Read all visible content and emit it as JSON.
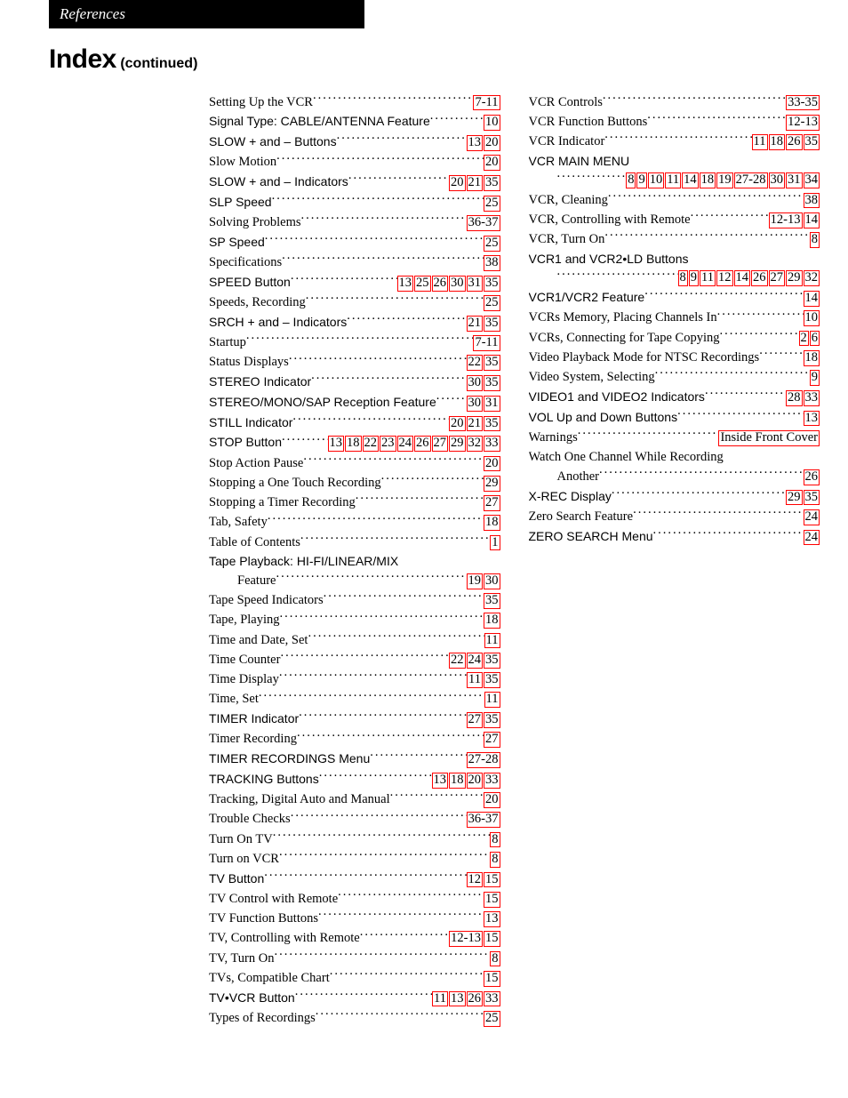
{
  "header_tab": "References",
  "title_main": "Index",
  "title_sub": "(continued)",
  "link_border_color": "#ff0000",
  "text_color": "#000000",
  "background_color": "#ffffff",
  "col1": [
    {
      "label": "Setting Up the VCR",
      "pages": [
        {
          "t": "7-11",
          "box": true
        }
      ]
    },
    {
      "label": "Signal Type: CABLE/ANTENNA Feature",
      "sans": true,
      "pages": [
        {
          "t": "10",
          "box": true
        }
      ]
    },
    {
      "label": "SLOW + and – Buttons",
      "sans": true,
      "pages": [
        {
          "t": "13",
          "box": true
        },
        {
          "t": "20",
          "box": true
        }
      ]
    },
    {
      "label": "Slow Motion",
      "pages": [
        {
          "t": "20",
          "box": true
        }
      ]
    },
    {
      "label": "SLOW + and – Indicators",
      "sans": true,
      "pages": [
        {
          "t": "20",
          "box": true
        },
        {
          "t": "21",
          "box": true
        },
        {
          "t": "35",
          "box": true
        }
      ]
    },
    {
      "label": "SLP Speed",
      "sans": true,
      "pages": [
        {
          "t": "25",
          "box": true
        }
      ]
    },
    {
      "label": "Solving Problems",
      "pages": [
        {
          "t": "36-37",
          "box": true
        }
      ]
    },
    {
      "label": "SP Speed",
      "sans": true,
      "pages": [
        {
          "t": "25",
          "box": true
        }
      ]
    },
    {
      "label": "Specifications",
      "pages": [
        {
          "t": "38",
          "box": true
        }
      ]
    },
    {
      "label": "SPEED Button",
      "sans": true,
      "pages": [
        {
          "t": "13",
          "box": true
        },
        {
          "t": "25",
          "box": true
        },
        {
          "t": "26",
          "box": true
        },
        {
          "t": "30",
          "box": true
        },
        {
          "t": "31",
          "box": true
        },
        {
          "t": "35",
          "box": true
        }
      ]
    },
    {
      "label": "Speeds, Recording",
      "pages": [
        {
          "t": "25",
          "box": true
        }
      ]
    },
    {
      "label": "SRCH + and – Indicators",
      "sans": true,
      "pages": [
        {
          "t": "21",
          "box": true
        },
        {
          "t": "35",
          "box": true
        }
      ]
    },
    {
      "label": "Startup",
      "pages": [
        {
          "t": "7-11",
          "box": true
        }
      ]
    },
    {
      "label": "Status Displays",
      "pages": [
        {
          "t": "22",
          "box": true
        },
        {
          "t": "35",
          "box": true
        }
      ]
    },
    {
      "label": "STEREO Indicator",
      "sans": true,
      "pages": [
        {
          "t": "30",
          "box": true
        },
        {
          "t": "35",
          "box": true
        }
      ]
    },
    {
      "label": "STEREO/MONO/SAP Reception Feature",
      "sans": true,
      "pages": [
        {
          "t": "30",
          "box": true
        },
        {
          "t": "31",
          "box": true
        }
      ]
    },
    {
      "label": "STILL Indicator",
      "sans": true,
      "pages": [
        {
          "t": "20",
          "box": true
        },
        {
          "t": "21",
          "box": true
        },
        {
          "t": "35",
          "box": true
        }
      ]
    },
    {
      "label": "STOP Button",
      "sans": true,
      "pages": [
        {
          "t": "13",
          "box": true
        },
        {
          "t": "18",
          "box": true
        },
        {
          "t": "22",
          "box": true
        },
        {
          "t": "23",
          "box": true
        },
        {
          "t": "24",
          "box": true
        },
        {
          "t": "26",
          "box": true
        },
        {
          "t": "27",
          "box": true
        },
        {
          "t": "29",
          "box": true
        },
        {
          "t": "32",
          "box": true
        },
        {
          "t": "33",
          "box": true
        }
      ]
    },
    {
      "label": "Stop Action Pause",
      "pages": [
        {
          "t": "20",
          "box": true
        }
      ]
    },
    {
      "label": "Stopping a One Touch Recording",
      "pages": [
        {
          "t": "29",
          "box": true
        }
      ]
    },
    {
      "label": "Stopping a Timer Recording",
      "pages": [
        {
          "t": "27",
          "box": true
        }
      ]
    },
    {
      "label": "Tab, Safety",
      "pages": [
        {
          "t": "18",
          "box": true
        }
      ]
    },
    {
      "label": "Table of Contents",
      "pages": [
        {
          "t": "1",
          "box": true
        }
      ]
    },
    {
      "label": "Tape Playback: HI-FI/LINEAR/MIX",
      "sans": true,
      "noleader": true,
      "pages": []
    },
    {
      "label": "Feature",
      "indent": true,
      "pages": [
        {
          "t": "19",
          "box": true
        },
        {
          "t": "30",
          "box": true
        }
      ]
    },
    {
      "label": "Tape Speed Indicators",
      "pages": [
        {
          "t": "35",
          "box": true
        }
      ]
    },
    {
      "label": "Tape, Playing",
      "pages": [
        {
          "t": "18",
          "box": true
        }
      ]
    },
    {
      "label": "Time and Date, Set",
      "pages": [
        {
          "t": "11",
          "box": true
        }
      ]
    },
    {
      "label": "Time Counter",
      "pages": [
        {
          "t": "22",
          "box": true
        },
        {
          "t": "24",
          "box": true
        },
        {
          "t": "35",
          "box": true
        }
      ]
    },
    {
      "label": "Time Display",
      "pages": [
        {
          "t": "11",
          "box": true
        },
        {
          "t": "35",
          "box": true
        }
      ]
    },
    {
      "label": "Time, Set",
      "pages": [
        {
          "t": "11",
          "box": true
        }
      ]
    },
    {
      "label": "TIMER Indicator",
      "sans": true,
      "pages": [
        {
          "t": "27",
          "box": true
        },
        {
          "t": "35",
          "box": true
        }
      ]
    },
    {
      "label": "Timer Recording",
      "pages": [
        {
          "t": "27",
          "box": true
        }
      ]
    },
    {
      "label": "TIMER RECORDINGS Menu",
      "sans": true,
      "pages": [
        {
          "t": "27-28",
          "box": true
        }
      ]
    },
    {
      "label": "TRACKING Buttons",
      "sans": true,
      "pages": [
        {
          "t": "13",
          "box": true
        },
        {
          "t": "18",
          "box": true
        },
        {
          "t": "20",
          "box": true
        },
        {
          "t": "33",
          "box": true
        }
      ]
    },
    {
      "label": "Tracking, Digital Auto and Manual",
      "pages": [
        {
          "t": "20",
          "box": true
        }
      ]
    },
    {
      "label": "Trouble Checks",
      "pages": [
        {
          "t": "36-37",
          "box": true
        }
      ]
    },
    {
      "label": "Turn On TV",
      "pages": [
        {
          "t": "8",
          "box": true
        }
      ]
    },
    {
      "label": "Turn on VCR",
      "pages": [
        {
          "t": "8",
          "box": true
        }
      ]
    },
    {
      "label": "TV Button",
      "sans": true,
      "pages": [
        {
          "t": "12",
          "box": true
        },
        {
          "t": "15",
          "box": true
        }
      ]
    },
    {
      "label": "TV Control with Remote",
      "pages": [
        {
          "t": "15",
          "box": true
        }
      ]
    },
    {
      "label": "TV Function Buttons",
      "pages": [
        {
          "t": "13",
          "box": true
        }
      ]
    },
    {
      "label": "TV, Controlling with Remote",
      "pages": [
        {
          "t": "12-13",
          "box": true
        },
        {
          "t": "15",
          "box": true
        }
      ]
    },
    {
      "label": "TV, Turn On",
      "pages": [
        {
          "t": "8",
          "box": true
        }
      ]
    },
    {
      "label": "TVs, Compatible Chart",
      "pages": [
        {
          "t": "15",
          "box": true
        }
      ]
    },
    {
      "label": "TV•VCR Button",
      "sans": true,
      "pages": [
        {
          "t": "11",
          "box": true
        },
        {
          "t": "13",
          "box": true
        },
        {
          "t": "26",
          "box": true
        },
        {
          "t": "33",
          "box": true
        }
      ]
    },
    {
      "label": "Types of Recordings",
      "pages": [
        {
          "t": "25",
          "box": true
        }
      ]
    }
  ],
  "col2": [
    {
      "label": "VCR Controls",
      "pages": [
        {
          "t": "33-35",
          "box": true
        }
      ]
    },
    {
      "label": "VCR Function Buttons",
      "pages": [
        {
          "t": "12-13",
          "box": true
        }
      ]
    },
    {
      "label": "VCR Indicator",
      "pages": [
        {
          "t": "11",
          "box": true
        },
        {
          "t": "18",
          "box": true
        },
        {
          "t": "26",
          "box": true
        },
        {
          "t": "35",
          "box": true
        }
      ]
    },
    {
      "label": "VCR MAIN MENU",
      "sans": true,
      "noleader": true,
      "pages": []
    },
    {
      "label": "",
      "indent": true,
      "pages": [
        {
          "t": "8",
          "box": true
        },
        {
          "t": "9",
          "box": true
        },
        {
          "t": "10",
          "box": true
        },
        {
          "t": "11",
          "box": true
        },
        {
          "t": "14",
          "box": true
        },
        {
          "t": "18",
          "box": true
        },
        {
          "t": "19",
          "box": true
        },
        {
          "t": "27-28",
          "box": true
        },
        {
          "t": "30",
          "box": true
        },
        {
          "t": "31",
          "box": true
        },
        {
          "t": "34",
          "box": true
        }
      ]
    },
    {
      "label": "VCR, Cleaning",
      "pages": [
        {
          "t": "38",
          "box": true
        }
      ]
    },
    {
      "label": "VCR, Controlling with Remote",
      "pages": [
        {
          "t": "12-13",
          "box": true
        },
        {
          "t": "14",
          "box": true
        }
      ]
    },
    {
      "label": "VCR, Turn On",
      "pages": [
        {
          "t": "8",
          "box": true
        }
      ]
    },
    {
      "label": "VCR1 and VCR2•LD Buttons",
      "sans": true,
      "noleader": true,
      "pages": []
    },
    {
      "label": "",
      "indent": true,
      "pages": [
        {
          "t": "8",
          "box": true
        },
        {
          "t": "9",
          "box": true
        },
        {
          "t": "11",
          "box": true
        },
        {
          "t": "12",
          "box": true
        },
        {
          "t": "14",
          "box": true
        },
        {
          "t": "26",
          "box": true
        },
        {
          "t": "27",
          "box": true
        },
        {
          "t": "29",
          "box": true
        },
        {
          "t": "32",
          "box": true
        }
      ]
    },
    {
      "label": "VCR1/VCR2 Feature",
      "sans": true,
      "pages": [
        {
          "t": "14",
          "box": true
        }
      ]
    },
    {
      "label": "VCRs Memory, Placing Channels In",
      "pages": [
        {
          "t": "10",
          "box": true
        }
      ]
    },
    {
      "label": "VCRs, Connecting for Tape Copying",
      "pages": [
        {
          "t": "2",
          "box": true
        },
        {
          "t": "6",
          "box": true
        }
      ]
    },
    {
      "label": "Video Playback Mode for NTSC Recordings",
      "pages": [
        {
          "t": "18",
          "box": true
        }
      ]
    },
    {
      "label": "Video System, Selecting",
      "pages": [
        {
          "t": "9",
          "box": true
        }
      ]
    },
    {
      "label": "VIDEO1 and VIDEO2 Indicators",
      "sans": true,
      "pages": [
        {
          "t": "28",
          "box": true
        },
        {
          "t": "33",
          "box": true
        }
      ]
    },
    {
      "label": "VOL Up and Down Buttons",
      "sans": true,
      "pages": [
        {
          "t": "13",
          "box": true
        }
      ]
    },
    {
      "label": "Warnings",
      "pages": [
        {
          "t": "Inside Front Cover",
          "box": true
        }
      ]
    },
    {
      "label": "Watch One Channel While Recording",
      "noleader": true,
      "pages": []
    },
    {
      "label": "Another",
      "indent": true,
      "pages": [
        {
          "t": "26",
          "box": true
        }
      ]
    },
    {
      "label": "X-REC Display",
      "sans": true,
      "pages": [
        {
          "t": "29",
          "box": true
        },
        {
          "t": "35",
          "box": true
        }
      ]
    },
    {
      "label": "Zero Search Feature",
      "pages": [
        {
          "t": "24",
          "box": true
        }
      ]
    },
    {
      "label": "ZERO SEARCH Menu",
      "sans": true,
      "pages": [
        {
          "t": "24",
          "box": true
        }
      ]
    }
  ]
}
